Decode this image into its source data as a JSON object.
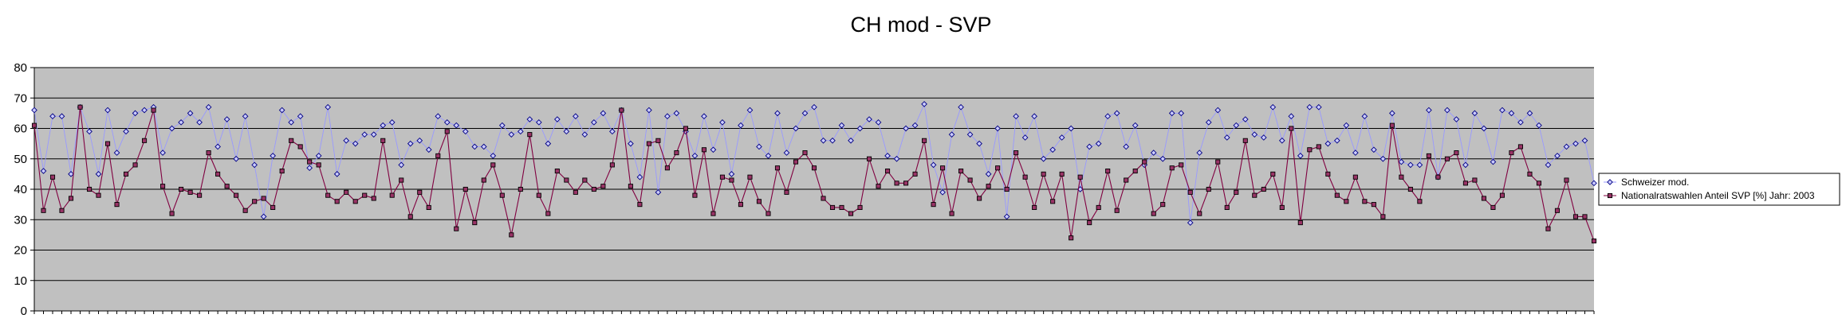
{
  "chart_data": {
    "type": "line",
    "title": "CH mod - SVP",
    "xlabel": "",
    "ylabel": "",
    "ylim": [
      0,
      80
    ],
    "yticks": [
      0,
      10,
      20,
      30,
      40,
      50,
      60,
      70,
      80
    ],
    "grid": true,
    "legend_position": "right",
    "series": [
      {
        "name": "Schweizer mod.",
        "color": "#9999ff",
        "marker": "diamond",
        "values": [
          66,
          46,
          64,
          64,
          45,
          67,
          59,
          45,
          66,
          52,
          59,
          65,
          66,
          67,
          52,
          60,
          62,
          65,
          62,
          67,
          54,
          63,
          50,
          64,
          48,
          31,
          51,
          66,
          62,
          64,
          47,
          51,
          67,
          45,
          56,
          55,
          58,
          58,
          61,
          62,
          48,
          55,
          56,
          53,
          64,
          62,
          61,
          59,
          54,
          54,
          51,
          61,
          58,
          59,
          63,
          62,
          55,
          63,
          59,
          64,
          58,
          62,
          65,
          59,
          66,
          55,
          44,
          66,
          39,
          64,
          65,
          59,
          51,
          64,
          53,
          62,
          45,
          61,
          66,
          54,
          51,
          65,
          52,
          60,
          65,
          67,
          56,
          56,
          61,
          56,
          60,
          63,
          62,
          51,
          50,
          60,
          61,
          68,
          48,
          39,
          58,
          67,
          58,
          55,
          45,
          60,
          31,
          64,
          57,
          64,
          50,
          53,
          57,
          60,
          40,
          54,
          55,
          64,
          65,
          54,
          61,
          48,
          52,
          50,
          65,
          65,
          29,
          52,
          62,
          66,
          57,
          61,
          63,
          58,
          57,
          67,
          56,
          64,
          51,
          67,
          67,
          55,
          56,
          61,
          52,
          64,
          53,
          50,
          65,
          49,
          48,
          48,
          66,
          44,
          66,
          63,
          48,
          65,
          60,
          49,
          66,
          65,
          62,
          65,
          61,
          48,
          51,
          54,
          55,
          56,
          42
        ]
      },
      {
        "name": "Nationalratswahlen Anteil SVP [%] Jahr: 2003",
        "color": "#800040",
        "marker": "square",
        "values": [
          61,
          33,
          44,
          33,
          37,
          67,
          40,
          38,
          55,
          35,
          45,
          48,
          56,
          66,
          41,
          32,
          40,
          39,
          38,
          52,
          45,
          41,
          38,
          33,
          36,
          37,
          34,
          46,
          56,
          54,
          49,
          48,
          38,
          36,
          39,
          36,
          38,
          37,
          56,
          38,
          43,
          31,
          39,
          34,
          51,
          59,
          27,
          40,
          29,
          43,
          48,
          38,
          25,
          40,
          58,
          38,
          32,
          46,
          43,
          39,
          43,
          40,
          41,
          48,
          66,
          41,
          35,
          55,
          56,
          47,
          52,
          60,
          38,
          53,
          32,
          44,
          43,
          35,
          44,
          36,
          32,
          47,
          39,
          49,
          52,
          47,
          37,
          34,
          34,
          32,
          34,
          50,
          41,
          46,
          42,
          42,
          45,
          56,
          35,
          47,
          32,
          46,
          43,
          37,
          41,
          47,
          40,
          52,
          44,
          34,
          45,
          36,
          45,
          24,
          44,
          29,
          34,
          46,
          33,
          43,
          46,
          49,
          32,
          35,
          47,
          48,
          39,
          32,
          40,
          49,
          34,
          39,
          56,
          38,
          40,
          45,
          34,
          60,
          29,
          53,
          54,
          45,
          38,
          36,
          44,
          36,
          35,
          31,
          61,
          44,
          40,
          36,
          51,
          44,
          50,
          52,
          42,
          43,
          37,
          34,
          38,
          52,
          54,
          45,
          42,
          27,
          33,
          43,
          31,
          31,
          23
        ]
      }
    ]
  }
}
